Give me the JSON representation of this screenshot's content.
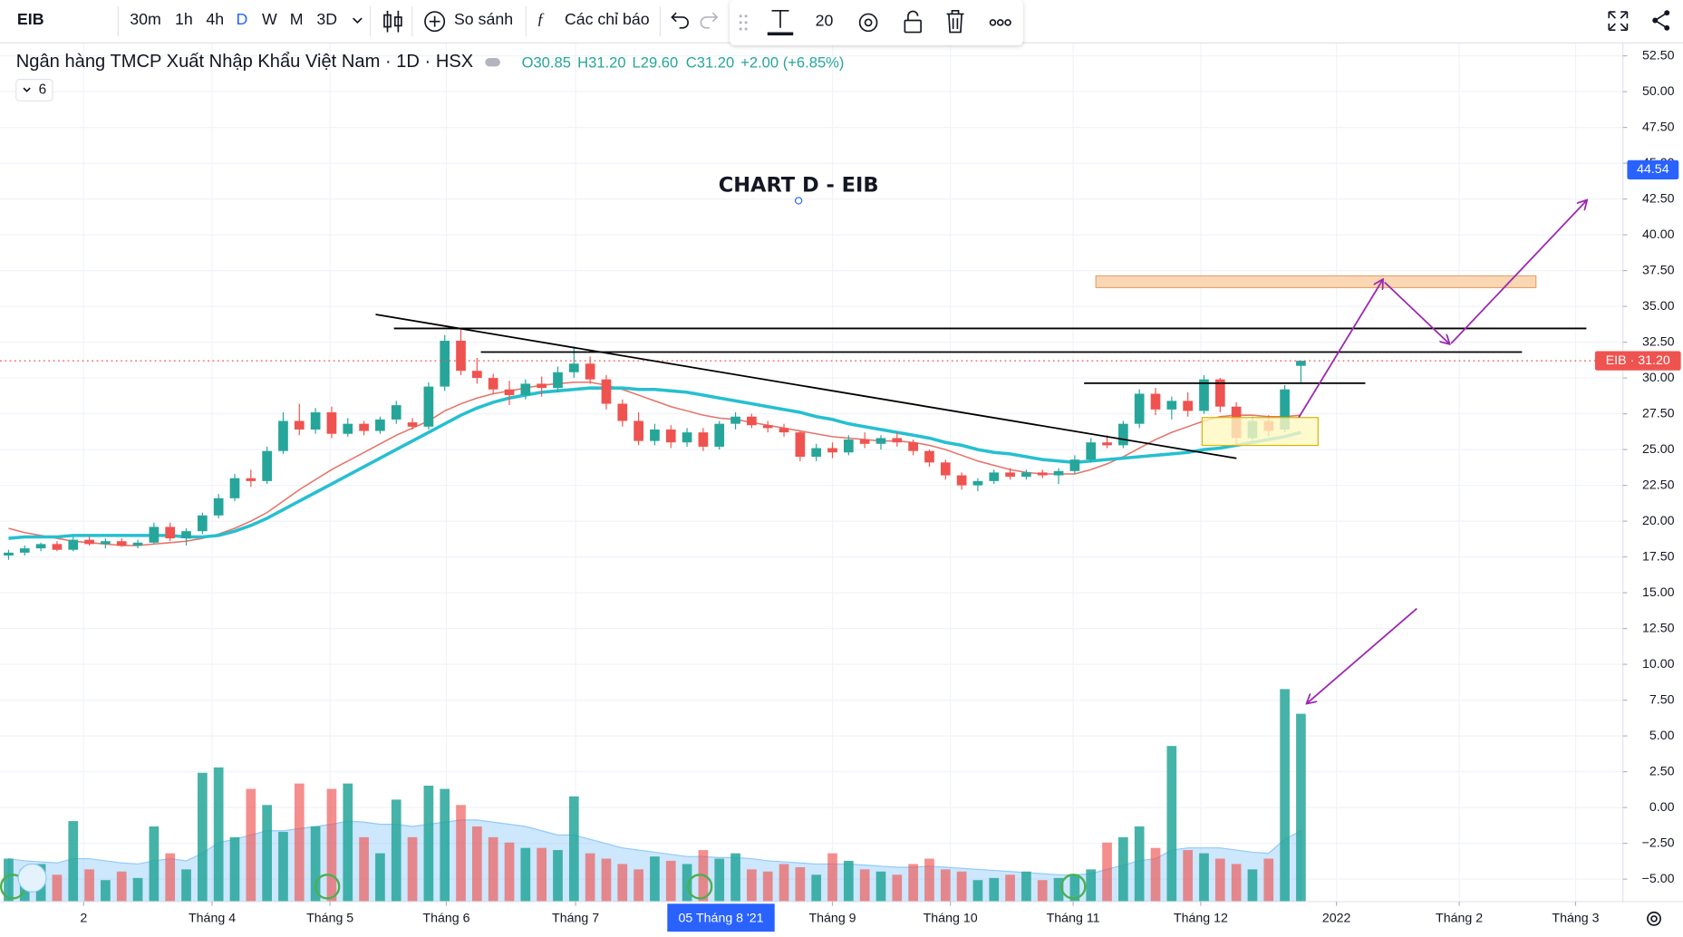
{
  "toolbar": {
    "symbol": "EIB",
    "intervals": [
      "30m",
      "1h",
      "4h",
      "D",
      "W",
      "M",
      "3D"
    ],
    "compare": "So sánh",
    "indicators": "Các chỉ báo",
    "font_size": "20"
  },
  "legend": {
    "name": "Ngân hàng TMCP Xuất Nhập Khẩu Việt Nam · 1D · HSX",
    "open": "O30.85",
    "high": "H31.20",
    "low": "L29.60",
    "close": "C31.20",
    "change": "+2.00 (+6.85%)",
    "indicator_count": "6"
  },
  "chart_data": {
    "type": "candlestick",
    "title": "CHART D - EIB",
    "up_color": "#26a69a",
    "down_color": "#ef5350",
    "grid": true,
    "xlim": [
      -0.53,
      99.93
    ],
    "xticks": [
      {
        "value": 4.65,
        "label": "2"
      },
      {
        "value": 12.6,
        "label": "Tháng 4"
      },
      {
        "value": 19.9,
        "label": "Tháng 5"
      },
      {
        "value": 27.1,
        "label": "Tháng 6"
      },
      {
        "value": 35.1,
        "label": "Tháng 7"
      },
      {
        "value": 51.0,
        "label": "Tháng 9"
      },
      {
        "value": 58.3,
        "label": "Tháng 10"
      },
      {
        "value": 65.9,
        "label": "Tháng 11"
      },
      {
        "value": 73.8,
        "label": "Tháng 12"
      },
      {
        "value": 82.2,
        "label": "2022"
      },
      {
        "value": 89.8,
        "label": "Tháng 2"
      },
      {
        "value": 97.0,
        "label": "Tháng 3"
      }
    ],
    "crosshair": {
      "value": 44.1,
      "label": "05 Tháng 8 '21"
    },
    "ylim": [
      -6.57,
      53.4
    ],
    "yticks": [
      {
        "value": 52.5,
        "label": "52.50"
      },
      {
        "value": 50,
        "label": "50.00"
      },
      {
        "value": 47.5,
        "label": "47.50"
      },
      {
        "value": 45,
        "label": "45.00"
      },
      {
        "value": 42.5,
        "label": "42.50"
      },
      {
        "value": 40,
        "label": "40.00"
      },
      {
        "value": 37.5,
        "label": "37.50"
      },
      {
        "value": 35,
        "label": "35.00"
      },
      {
        "value": 32.5,
        "label": "32.50"
      },
      {
        "value": 30,
        "label": "30.00"
      },
      {
        "value": 27.5,
        "label": "27.50"
      },
      {
        "value": 25,
        "label": "25.00"
      },
      {
        "value": 22.5,
        "label": "22.50"
      },
      {
        "value": 20,
        "label": "20.00"
      },
      {
        "value": 17.5,
        "label": "17.50"
      },
      {
        "value": 15,
        "label": "15.00"
      },
      {
        "value": 12.5,
        "label": "12.50"
      },
      {
        "value": 10,
        "label": "10.00"
      },
      {
        "value": 7.5,
        "label": "7.50"
      },
      {
        "value": 5,
        "label": "5.00"
      },
      {
        "value": 2.5,
        "label": "2.50"
      },
      {
        "value": 0,
        "label": "0.00"
      },
      {
        "value": -2.5,
        "label": "−2.50"
      },
      {
        "value": -5,
        "label": "−5.00"
      }
    ],
    "price_tag": 44.54,
    "last_price_label": "EIB · 31.20",
    "candles": [
      [
        17.6,
        18.0,
        17.3,
        17.8
      ],
      [
        17.8,
        18.3,
        17.6,
        18.1
      ],
      [
        18.1,
        18.5,
        17.9,
        18.4
      ],
      [
        18.4,
        18.6,
        17.9,
        18.0
      ],
      [
        18.0,
        18.9,
        17.9,
        18.7
      ],
      [
        18.7,
        18.9,
        18.3,
        18.4
      ],
      [
        18.4,
        18.8,
        18.1,
        18.6
      ],
      [
        18.6,
        18.8,
        18.2,
        18.3
      ],
      [
        18.3,
        18.7,
        18.1,
        18.5
      ],
      [
        18.5,
        19.9,
        18.4,
        19.6
      ],
      [
        19.6,
        19.9,
        18.6,
        18.8
      ],
      [
        18.8,
        19.5,
        18.3,
        19.3
      ],
      [
        19.3,
        20.6,
        19.1,
        20.4
      ],
      [
        20.4,
        21.9,
        20.2,
        21.6
      ],
      [
        21.6,
        23.3,
        21.4,
        23.0
      ],
      [
        23.0,
        23.6,
        22.4,
        22.8
      ],
      [
        22.8,
        25.2,
        22.6,
        24.9
      ],
      [
        24.9,
        27.6,
        24.7,
        27.0
      ],
      [
        27.0,
        28.2,
        26.0,
        26.4
      ],
      [
        26.4,
        27.9,
        26.1,
        27.6
      ],
      [
        27.6,
        28.0,
        25.8,
        26.1
      ],
      [
        26.1,
        27.2,
        25.9,
        26.8
      ],
      [
        26.8,
        27.0,
        26.0,
        26.3
      ],
      [
        26.3,
        27.3,
        26.1,
        27.1
      ],
      [
        27.1,
        28.4,
        26.8,
        28.1
      ],
      [
        26.9,
        27.2,
        26.4,
        26.6
      ],
      [
        26.6,
        29.7,
        26.4,
        29.4
      ],
      [
        29.4,
        33.0,
        29.1,
        32.6
      ],
      [
        32.6,
        33.4,
        30.2,
        30.5
      ],
      [
        30.5,
        31.4,
        29.6,
        30.0
      ],
      [
        30.0,
        30.3,
        28.9,
        29.2
      ],
      [
        29.2,
        29.8,
        28.1,
        28.8
      ],
      [
        28.8,
        29.9,
        28.5,
        29.6
      ],
      [
        29.6,
        30.1,
        28.7,
        29.3
      ],
      [
        29.3,
        30.8,
        29.0,
        30.4
      ],
      [
        30.4,
        32.2,
        30.0,
        31.0
      ],
      [
        31.0,
        31.5,
        29.6,
        29.9
      ],
      [
        29.9,
        30.2,
        27.8,
        28.2
      ],
      [
        28.2,
        28.5,
        26.6,
        27.0
      ],
      [
        27.0,
        27.6,
        25.3,
        25.6
      ],
      [
        25.6,
        26.8,
        25.3,
        26.4
      ],
      [
        26.4,
        26.7,
        25.1,
        25.5
      ],
      [
        25.5,
        26.5,
        25.2,
        26.2
      ],
      [
        26.2,
        26.5,
        24.9,
        25.2
      ],
      [
        25.2,
        27.0,
        25.0,
        26.8
      ],
      [
        26.8,
        27.6,
        26.4,
        27.3
      ],
      [
        27.3,
        27.5,
        26.5,
        26.7
      ],
      [
        26.7,
        27.0,
        26.2,
        26.5
      ],
      [
        26.5,
        26.8,
        25.9,
        26.2
      ],
      [
        26.2,
        26.3,
        24.2,
        24.5
      ],
      [
        24.5,
        25.4,
        24.2,
        25.1
      ],
      [
        25.1,
        25.5,
        24.4,
        24.8
      ],
      [
        24.8,
        26.0,
        24.6,
        25.7
      ],
      [
        25.7,
        26.2,
        25.1,
        25.4
      ],
      [
        25.4,
        26.0,
        25.0,
        25.8
      ],
      [
        25.8,
        26.2,
        25.2,
        25.5
      ],
      [
        25.5,
        25.7,
        24.6,
        24.9
      ],
      [
        24.9,
        25.0,
        23.8,
        24.1
      ],
      [
        24.1,
        24.3,
        22.9,
        23.2
      ],
      [
        23.2,
        23.4,
        22.2,
        22.5
      ],
      [
        22.5,
        23.0,
        22.1,
        22.8
      ],
      [
        22.8,
        23.6,
        22.6,
        23.4
      ],
      [
        23.4,
        23.7,
        22.9,
        23.1
      ],
      [
        23.1,
        23.6,
        22.9,
        23.4
      ],
      [
        23.4,
        23.6,
        23.0,
        23.2
      ],
      [
        23.2,
        23.7,
        22.6,
        23.5
      ],
      [
        23.5,
        24.6,
        23.3,
        24.3
      ],
      [
        24.3,
        25.8,
        24.1,
        25.5
      ],
      [
        25.5,
        26.0,
        25.1,
        25.3
      ],
      [
        25.3,
        27.0,
        25.1,
        26.8
      ],
      [
        26.8,
        29.2,
        26.5,
        28.9
      ],
      [
        28.9,
        29.3,
        27.4,
        27.8
      ],
      [
        27.8,
        28.7,
        27.1,
        28.4
      ],
      [
        28.4,
        29.0,
        27.3,
        27.7
      ],
      [
        27.7,
        30.2,
        27.5,
        29.9
      ],
      [
        29.9,
        30.0,
        27.6,
        28.0
      ],
      [
        28.0,
        28.3,
        25.3,
        25.8
      ],
      [
        25.8,
        27.3,
        25.6,
        27.0
      ],
      [
        27.0,
        27.4,
        25.9,
        26.3
      ],
      [
        26.4,
        29.5,
        26.2,
        29.2
      ],
      [
        30.85,
        31.2,
        29.6,
        31.2
      ]
    ],
    "series": [
      {
        "color": "#e57368",
        "values": [
          19.5,
          19.2,
          19.0,
          18.8,
          18.6,
          18.5,
          18.4,
          18.3,
          18.3,
          18.4,
          18.5,
          18.6,
          18.8,
          19.1,
          19.5,
          20.0,
          20.6,
          21.4,
          22.2,
          22.9,
          23.6,
          24.2,
          24.8,
          25.4,
          26.0,
          26.5,
          27.0,
          27.7,
          28.2,
          28.6,
          28.9,
          29.1,
          29.3,
          29.5,
          29.6,
          29.7,
          29.7,
          29.5,
          29.2,
          28.8,
          28.4,
          28.0,
          27.7,
          27.4,
          27.2,
          27.1,
          26.9,
          26.7,
          26.5,
          26.3,
          26.1,
          25.9,
          25.8,
          25.7,
          25.6,
          25.6,
          25.5,
          25.3,
          25.0,
          24.6,
          24.2,
          23.9,
          23.6,
          23.4,
          23.3,
          23.3,
          23.3,
          23.6,
          24.0,
          24.5,
          25.1,
          25.7,
          26.2,
          26.6,
          27.0,
          27.3,
          27.4,
          27.4,
          27.3,
          27.3,
          27.4
        ]
      },
      {
        "color": "#26bfd0",
        "values": [
          18.8,
          18.9,
          18.9,
          18.9,
          19.0,
          19.0,
          19.0,
          19.0,
          19.0,
          19.0,
          19.0,
          18.9,
          18.9,
          19.0,
          19.3,
          19.7,
          20.2,
          20.8,
          21.4,
          22.0,
          22.6,
          23.2,
          23.8,
          24.4,
          25.0,
          25.6,
          26.2,
          26.8,
          27.4,
          27.9,
          28.3,
          28.6,
          28.8,
          29.0,
          29.1,
          29.2,
          29.3,
          29.3,
          29.3,
          29.2,
          29.2,
          29.1,
          29.0,
          28.8,
          28.6,
          28.4,
          28.2,
          28.0,
          27.8,
          27.6,
          27.3,
          27.1,
          26.8,
          26.6,
          26.4,
          26.2,
          26.0,
          25.8,
          25.5,
          25.3,
          25.0,
          24.8,
          24.7,
          24.5,
          24.3,
          24.2,
          24.1,
          24.2,
          24.3,
          24.4,
          24.5,
          24.6,
          24.7,
          24.8,
          25.0,
          25.1,
          25.3,
          25.5,
          25.7,
          25.9,
          26.2
        ]
      }
    ],
    "volume": [
      40,
      30,
      35,
      25,
      75,
      30,
      20,
      28,
      22,
      70,
      45,
      30,
      120,
      125,
      60,
      105,
      90,
      65,
      110,
      70,
      105,
      110,
      60,
      45,
      95,
      60,
      108,
      105,
      90,
      70,
      60,
      55,
      50,
      50,
      48,
      98,
      45,
      40,
      35,
      30,
      42,
      38,
      35,
      48,
      40,
      45,
      30,
      28,
      35,
      32,
      25,
      45,
      38,
      30,
      28,
      25,
      35,
      40,
      30,
      28,
      20,
      22,
      25,
      28,
      20,
      22,
      25,
      30,
      55,
      60,
      70,
      50,
      145,
      48,
      45,
      40,
      35,
      30,
      40,
      198,
      175
    ],
    "volume_ma": [
      40,
      38,
      37,
      36,
      40,
      40,
      38,
      36,
      35,
      38,
      40,
      38,
      45,
      55,
      58,
      62,
      66,
      66,
      68,
      70,
      72,
      75,
      74,
      72,
      72,
      70,
      72,
      74,
      76,
      76,
      74,
      72,
      70,
      66,
      62,
      62,
      58,
      54,
      50,
      48,
      46,
      44,
      42,
      42,
      41,
      41,
      40,
      38,
      37,
      36,
      35,
      35,
      35,
      34,
      33,
      32,
      32,
      33,
      32,
      31,
      30,
      29,
      28,
      27,
      26,
      25,
      25,
      26,
      30,
      34,
      38,
      40,
      48,
      50,
      50,
      50,
      48,
      46,
      45,
      58,
      66
    ]
  }
}
